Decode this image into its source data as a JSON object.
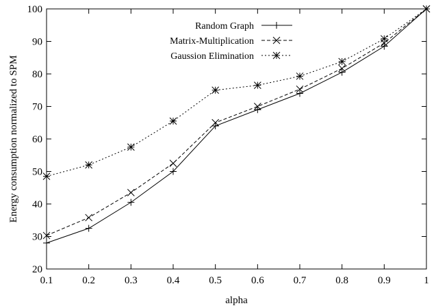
{
  "chart_data": {
    "type": "line",
    "title": "",
    "xlabel": "alpha",
    "ylabel": "Energy consumption normalized to SPM",
    "x": [
      0.1,
      0.2,
      0.3,
      0.4,
      0.5,
      0.6,
      0.7,
      0.8,
      0.9,
      1
    ],
    "x_tick_labels": [
      "0.1",
      "0.2",
      "0.3",
      "0.4",
      "0.5",
      "0.6",
      "0.7",
      "0.8",
      "0.9",
      "1"
    ],
    "y_ticks": [
      20,
      30,
      40,
      50,
      60,
      70,
      80,
      90,
      100
    ],
    "xlim": [
      0.1,
      1
    ],
    "ylim": [
      20,
      100
    ],
    "grid": false,
    "legend_position": "top-left",
    "series": [
      {
        "name": "Random Graph",
        "values": [
          28,
          32.5,
          40.5,
          50,
          64,
          69,
          74,
          80.5,
          88.5,
          100
        ],
        "marker": "plus",
        "line_style": "solid",
        "color": "#000000"
      },
      {
        "name": "Matrix-Multiplication",
        "values": [
          30.3,
          35.8,
          43.5,
          52.5,
          65,
          70,
          75.3,
          81.7,
          89.5,
          100
        ],
        "marker": "cross",
        "line_style": "dashed",
        "color": "#000000"
      },
      {
        "name": "Gaussion Elimination",
        "values": [
          48.5,
          52,
          57.5,
          65.5,
          75,
          76.5,
          79.3,
          83.8,
          90.8,
          100
        ],
        "marker": "star",
        "line_style": "dotted",
        "color": "#000000"
      }
    ]
  }
}
